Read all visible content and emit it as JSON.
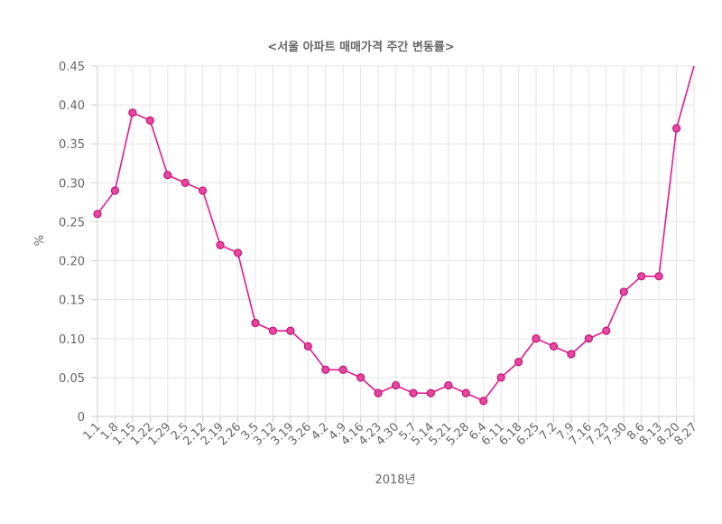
{
  "chart_data": {
    "type": "line",
    "title": "<서울 아파트 매매가격 주간 변동률>",
    "xlabel": "2018년",
    "ylabel": "%",
    "ylim": [
      0,
      0.45
    ],
    "y_ticks": [
      "0",
      "0.05",
      "0.10",
      "0.15",
      "0.20",
      "0.25",
      "0.30",
      "0.35",
      "0.40",
      "0.45"
    ],
    "categories": [
      "1.1",
      "1.8",
      "1.15",
      "1.22",
      "1.29",
      "2.5",
      "2.12",
      "2.19",
      "2.26",
      "3.5",
      "3.12",
      "3.19",
      "3.26",
      "4.2",
      "4.9",
      "4.16",
      "4.23",
      "4.30",
      "5.7",
      "5.14",
      "5.21",
      "5.28",
      "6.4",
      "6.11",
      "6.18",
      "6.25",
      "7.2",
      "7.9",
      "7.16",
      "7.23",
      "7.30",
      "8.6",
      "8.13",
      "8.20",
      "8.27"
    ],
    "series": [
      {
        "values": [
          0.26,
          0.29,
          0.39,
          0.38,
          0.31,
          0.3,
          0.29,
          0.22,
          0.21,
          0.12,
          0.11,
          0.11,
          0.09,
          0.06,
          0.06,
          0.05,
          0.03,
          0.04,
          0.03,
          0.03,
          0.04,
          0.03,
          0.02,
          0.05,
          0.07,
          0.1,
          0.09,
          0.08,
          0.1,
          0.11,
          0.16,
          0.18,
          0.18,
          0.37,
          0.45
        ]
      }
    ],
    "grid": true,
    "legend": "none",
    "colors": {
      "line": "#e5198f",
      "point_fill": "#e8479e",
      "grid": "#e5e5e5",
      "text": "#666666"
    }
  }
}
